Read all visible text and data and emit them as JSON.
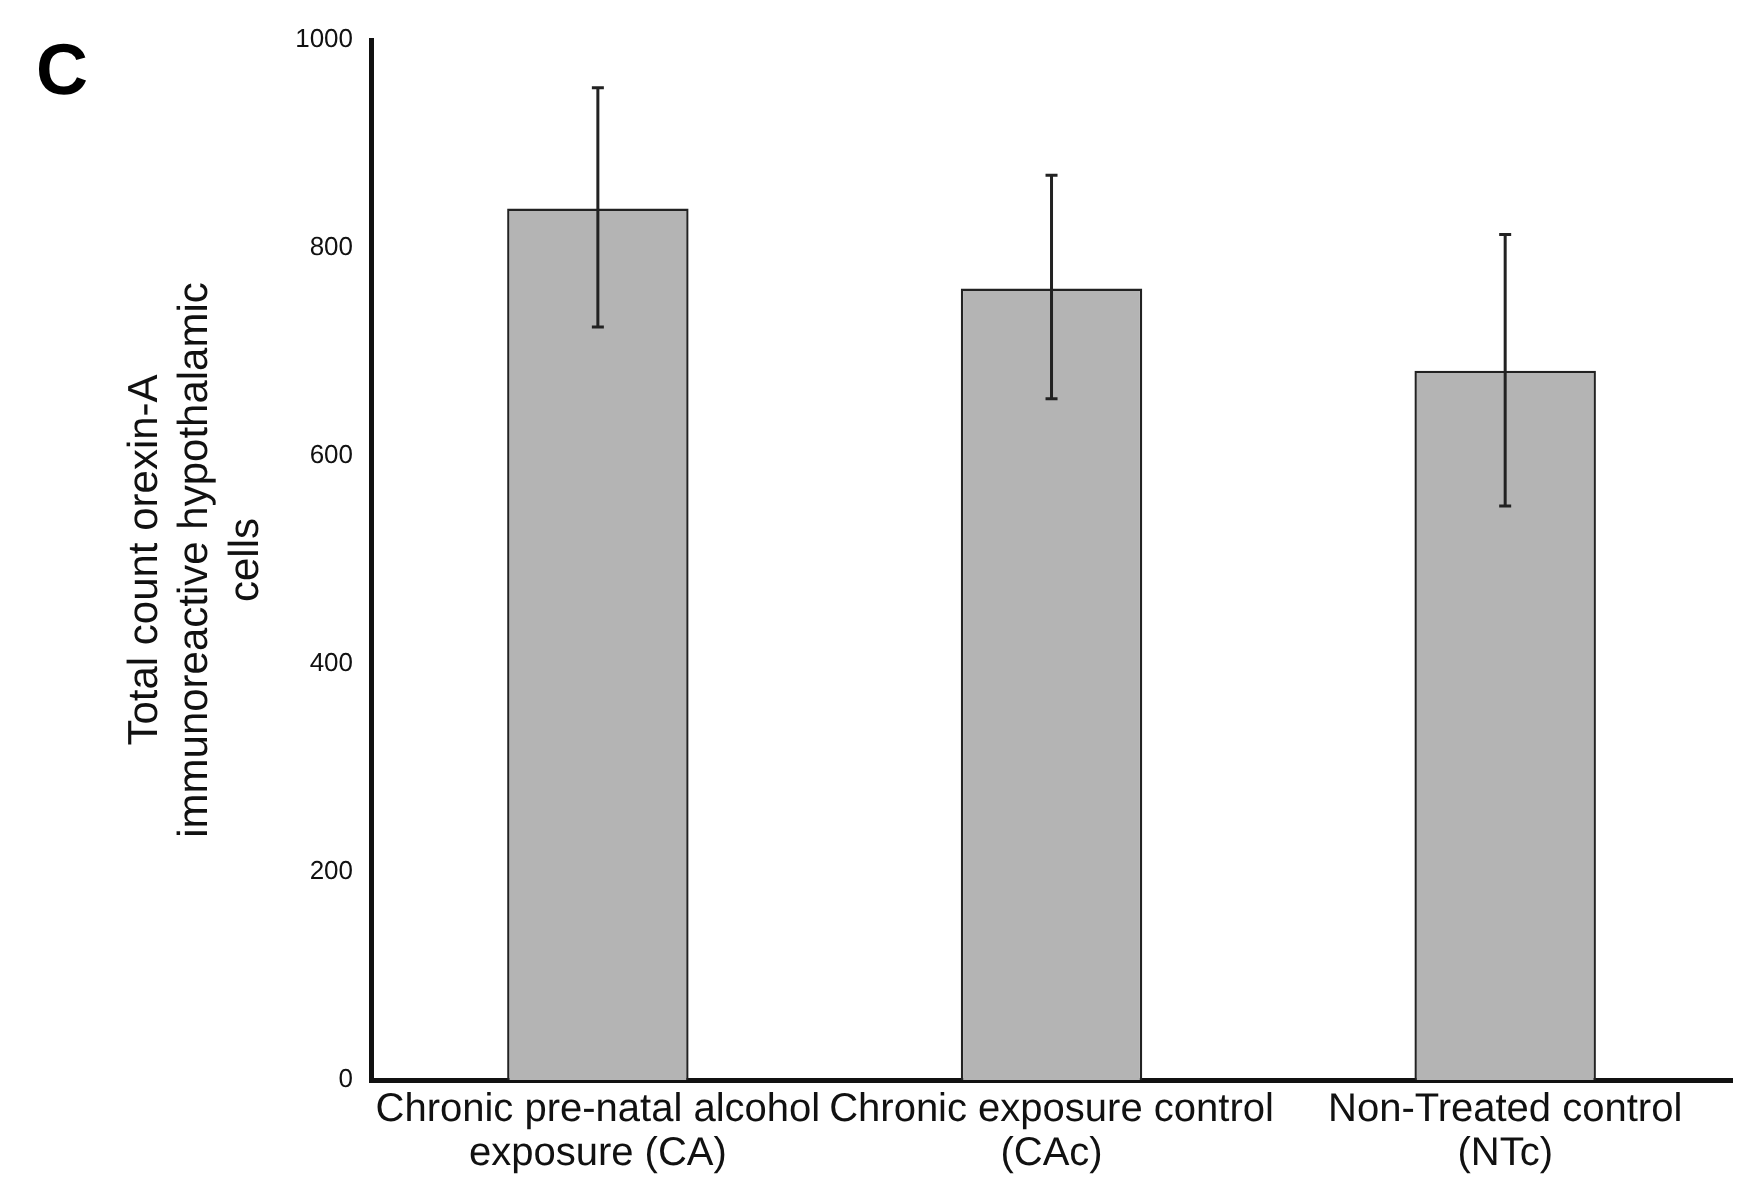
{
  "chart_data": {
    "type": "bar",
    "title": "C",
    "ylabel": "Total count orexin-A immunoreactive hypothalamic cells",
    "categories": [
      "Chronic pre-natal alcohol exposure (CA)",
      "Chronic exposure control (CAc)",
      "Non-Treated control (NTc)"
    ],
    "values": [
      838,
      761,
      682
    ],
    "color": "#b4b4b4",
    "errors": [
      [
        724,
        954
      ],
      [
        655,
        870
      ],
      [
        552,
        813
      ]
    ],
    "ylim": [
      0,
      1000
    ],
    "yticks": [
      0,
      200,
      400,
      600,
      800,
      1000
    ],
    "grid": false,
    "legend": false
  }
}
